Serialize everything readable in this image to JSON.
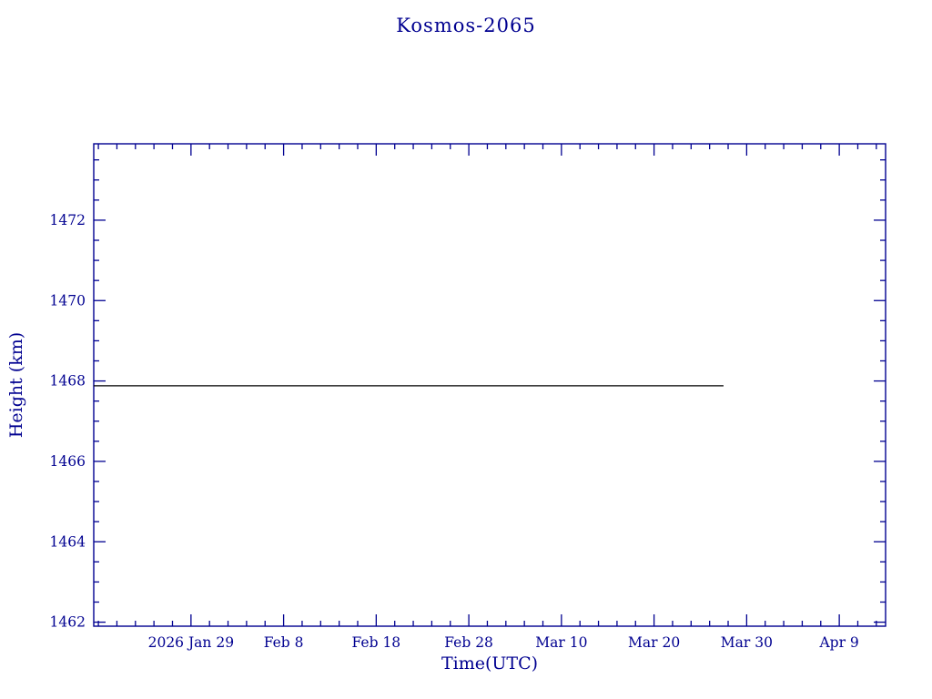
{
  "chart_data": {
    "type": "line",
    "title": "Kosmos-2065",
    "xlabel": "Time(UTC)",
    "ylabel": "Height (km)",
    "x_unit": "days relative to 2026 Jan 29",
    "xlim_days": [
      -10.5,
      75
    ],
    "ylim": [
      1461.9,
      1473.9
    ],
    "x_ticks": [
      {
        "day": 0,
        "label": "2026 Jan 29"
      },
      {
        "day": 10,
        "label": "Feb 8"
      },
      {
        "day": 20,
        "label": "Feb 18"
      },
      {
        "day": 30,
        "label": "Feb 28"
      },
      {
        "day": 40,
        "label": "Mar 10"
      },
      {
        "day": 50,
        "label": "Mar 20"
      },
      {
        "day": 60,
        "label": "Mar 30"
      },
      {
        "day": 70,
        "label": "Apr 9"
      }
    ],
    "y_ticks": [
      1462,
      1464,
      1466,
      1468,
      1470,
      1472
    ],
    "minor_x_step_days": 2,
    "minor_y_step": 0.5,
    "series": [
      {
        "name": "height",
        "points": [
          {
            "day": -10.5,
            "value": 1467.88
          },
          {
            "day": 57.5,
            "value": 1467.88
          }
        ]
      }
    ],
    "colors": {
      "axis": "#000090",
      "line": "#000000",
      "background": "#ffffff"
    }
  }
}
